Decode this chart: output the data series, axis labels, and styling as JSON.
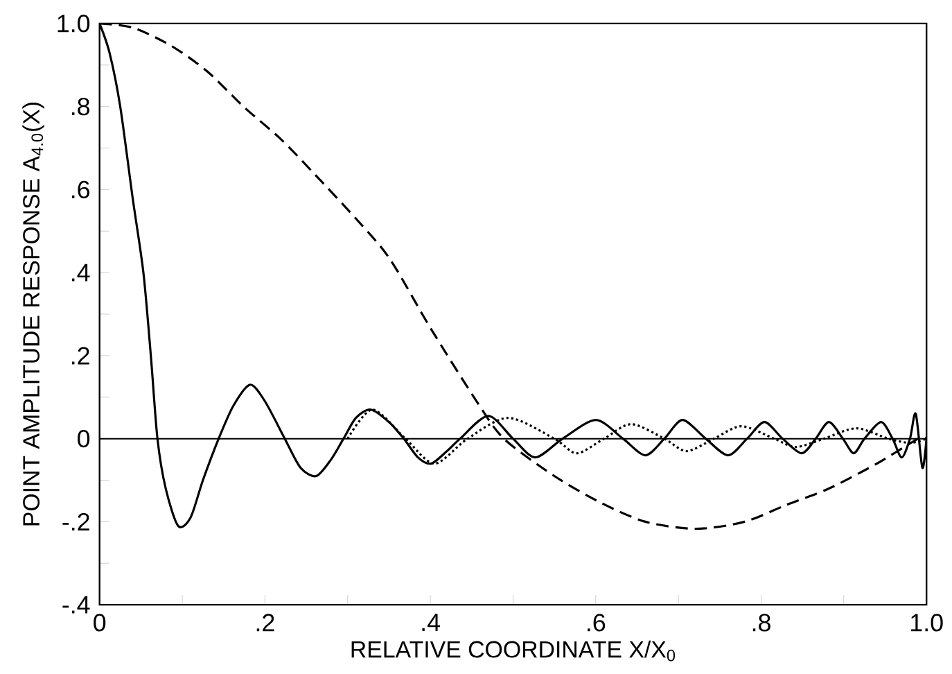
{
  "chart_data": {
    "type": "line",
    "xlabel": "RELATIVE COORDINATE X/X$_{0}$",
    "ylabel": "POINT AMPLITUDE RESPONSE A$_{4.0}$(X)",
    "xlim": [
      0,
      1.0
    ],
    "ylim": [
      -0.4,
      1.0
    ],
    "xticks": [
      0,
      {
        "value": 0.1,
        "label": null
      },
      {
        "value": 0.2,
        "label": ".2"
      },
      {
        "value": 0.3,
        "label": null
      },
      {
        "value": 0.4,
        "label": ".4"
      },
      {
        "value": 0.5,
        "label": null
      },
      {
        "value": 0.6,
        "label": ".6"
      },
      {
        "value": 0.7,
        "label": null
      },
      {
        "value": 0.8,
        "label": ".8"
      },
      {
        "value": 0.9,
        "label": null
      },
      {
        "value": 1.0,
        "label": "1.0"
      }
    ],
    "yticks": [
      {
        "value": -0.4,
        "label": "-.4"
      },
      {
        "value": -0.3,
        "label": null
      },
      {
        "value": -0.2,
        "label": "-.2"
      },
      {
        "value": -0.1,
        "label": null
      },
      0,
      {
        "value": 0.1,
        "label": null
      },
      {
        "value": 0.2,
        "label": ".2"
      },
      {
        "value": 0.3,
        "label": null
      },
      {
        "value": 0.4,
        "label": ".4"
      },
      {
        "value": 0.5,
        "label": null
      },
      {
        "value": 0.6,
        "label": ".6"
      },
      {
        "value": 0.7,
        "label": null
      },
      {
        "value": 0.8,
        "label": ".8"
      },
      {
        "value": 0.9,
        "label": null
      },
      {
        "value": 1.0,
        "label": "1.0"
      }
    ],
    "marker": "none",
    "ref_lines": [
      {
        "axis": "y",
        "value": 0,
        "color": "#000000",
        "line_style": "solid"
      }
    ],
    "series": [
      {
        "color": "#000000",
        "line_style": "solid",
        "x": [
          0,
          0.012,
          0.025,
          0.04,
          0.053,
          0.062,
          0.07,
          0.08,
          0.095,
          0.11,
          0.125,
          0.144,
          0.162,
          0.182,
          0.2,
          0.224,
          0.243,
          0.262,
          0.28,
          0.295,
          0.31,
          0.328,
          0.35,
          0.368,
          0.385,
          0.401,
          0.42,
          0.436,
          0.47,
          0.5,
          0.527,
          0.56,
          0.6,
          0.633,
          0.66,
          0.683,
          0.705,
          0.733,
          0.76,
          0.783,
          0.804,
          0.826,
          0.849,
          0.866,
          0.882,
          0.899,
          0.912,
          0.925,
          0.945,
          0.959,
          0.97,
          0.98,
          0.987,
          0.995,
          1.0
        ],
        "values": [
          1.0,
          0.93,
          0.8,
          0.58,
          0.4,
          0.2,
          0.0,
          -0.12,
          -0.21,
          -0.19,
          -0.1,
          0.0,
          0.08,
          0.13,
          0.09,
          0.0,
          -0.07,
          -0.09,
          -0.05,
          0.0,
          0.05,
          0.07,
          0.04,
          0.0,
          -0.045,
          -0.06,
          -0.03,
          0.0,
          0.055,
          0.0,
          -0.045,
          0.0,
          0.045,
          0.0,
          -0.04,
          0.0,
          0.045,
          0.0,
          -0.04,
          0.0,
          0.04,
          0.0,
          -0.035,
          0.0,
          0.04,
          0.0,
          -0.035,
          0.0,
          0.04,
          0.0,
          -0.045,
          0.0,
          0.06,
          -0.07,
          0.0
        ]
      },
      {
        "color": "#000000",
        "line_style": "dotted",
        "x": [
          0.3,
          0.33,
          0.37,
          0.405,
          0.445,
          0.494,
          0.55,
          0.577,
          0.61,
          0.643,
          0.683,
          0.71,
          0.743,
          0.776,
          0.816,
          0.842,
          0.876,
          0.915,
          0.954,
          0.98,
          1.0
        ],
        "values": [
          0.0,
          0.07,
          0.0,
          -0.06,
          0.0,
          0.05,
          0.0,
          -0.035,
          0.0,
          0.035,
          0.0,
          -0.03,
          0.0,
          0.03,
          0.0,
          -0.02,
          0.0,
          0.025,
          0.0,
          -0.01,
          0.0
        ]
      },
      {
        "color": "#000000",
        "line_style": "dashed",
        "x": [
          0,
          0.04,
          0.086,
          0.13,
          0.174,
          0.22,
          0.262,
          0.31,
          0.351,
          0.4,
          0.456,
          0.489,
          0.55,
          0.605,
          0.66,
          0.721,
          0.78,
          0.83,
          0.882,
          0.94,
          0.99,
          1.0
        ],
        "values": [
          1.0,
          0.99,
          0.947,
          0.885,
          0.8,
          0.72,
          0.633,
          0.53,
          0.433,
          0.267,
          0.09,
          0.0,
          -0.09,
          -0.153,
          -0.2,
          -0.217,
          -0.2,
          -0.16,
          -0.12,
          -0.06,
          0.0,
          0.0
        ]
      }
    ]
  }
}
